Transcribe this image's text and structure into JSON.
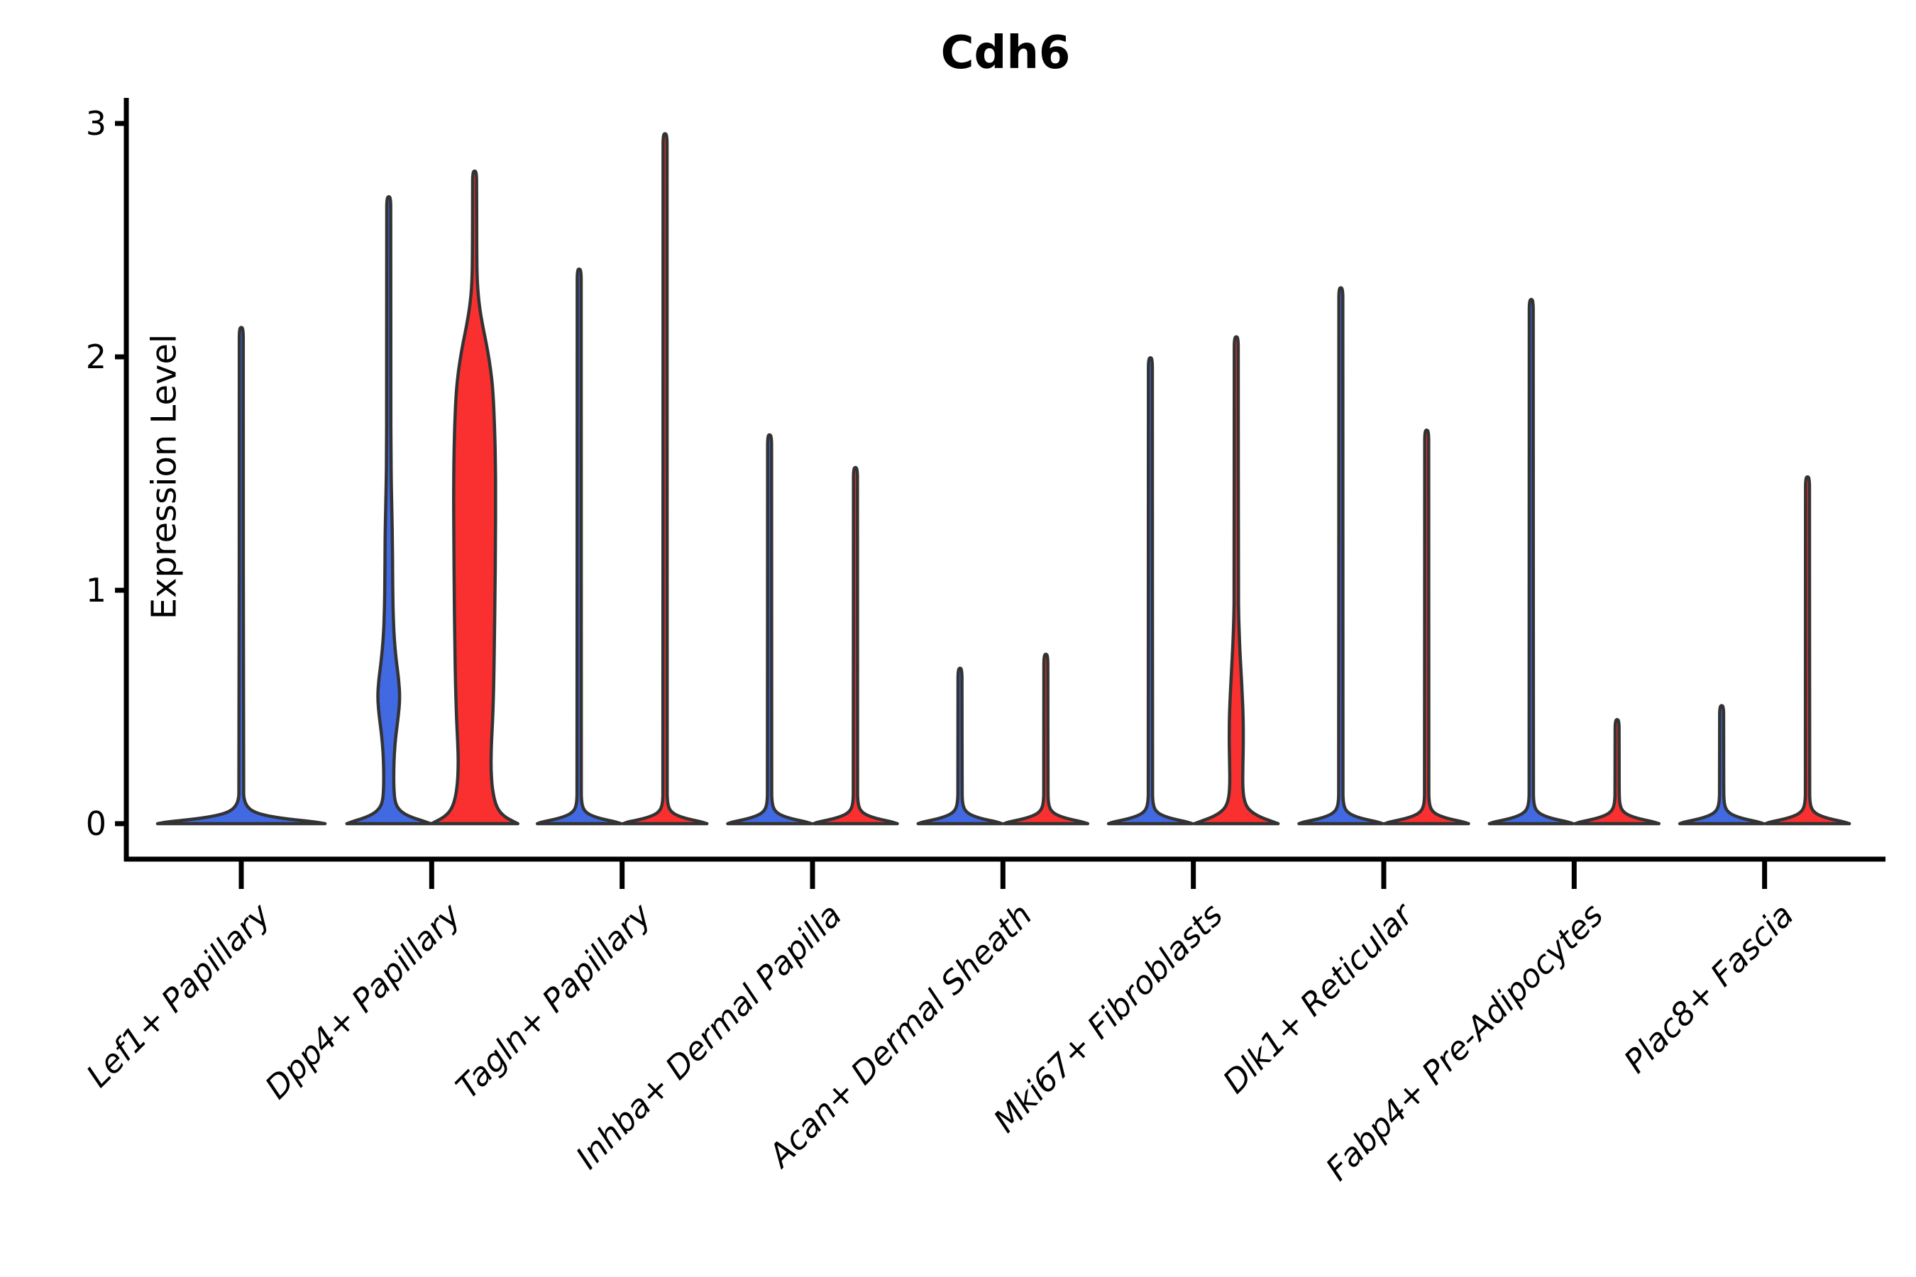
{
  "title": "Cdh6",
  "chart_data": {
    "type": "violin",
    "title": "Cdh6",
    "xlabel": "",
    "ylabel": "Expression Level",
    "ylim": [
      -0.15,
      3.11
    ],
    "yticks": [
      0,
      1,
      2,
      3
    ],
    "ytick_labels": [
      "0",
      "1",
      "2",
      "3"
    ],
    "grid": false,
    "legend": false,
    "background_color": "#ffffff",
    "axis_color": "#000000",
    "violin_outline_color": "#333333",
    "group_colors": {
      "left": "#4169E1",
      "right": "#FA3030"
    },
    "categories": [
      "Lef1+ Papillary",
      "Dpp4+ Papillary",
      "Tagln+ Papillary",
      "Inhba+ Dermal Papilla",
      "Acan+ Dermal Sheath",
      "Mki67+ Fibroblasts",
      "Dlk1+ Reticular",
      "Fabp4+ Pre-Adipocytes",
      "Plac8+ Fascia"
    ],
    "violins": [
      {
        "category": "Lef1+ Papillary",
        "category_index": 0,
        "side": "full",
        "fill": "#4169E1",
        "max_expression": 2.12,
        "profile": [
          [
            0,
            118
          ],
          [
            0.008,
            104
          ],
          [
            0.02,
            64
          ],
          [
            0.035,
            34
          ],
          [
            0.05,
            18
          ],
          [
            0.07,
            9
          ],
          [
            0.1,
            4
          ],
          [
            0.15,
            2.9
          ],
          [
            2.05,
            2.9
          ],
          [
            2.12,
            2.7
          ]
        ]
      },
      {
        "category": "Dpp4+ Papillary",
        "category_index": 1,
        "side": "left",
        "fill": "#4169E1",
        "max_expression": 2.68,
        "profile": [
          [
            0,
            59
          ],
          [
            0.01,
            50
          ],
          [
            0.025,
            34
          ],
          [
            0.045,
            20
          ],
          [
            0.07,
            12
          ],
          [
            0.1,
            8.5
          ],
          [
            0.15,
            7.2
          ],
          [
            0.22,
            7
          ],
          [
            0.3,
            7.8
          ],
          [
            0.38,
            10
          ],
          [
            0.46,
            13.5
          ],
          [
            0.54,
            15.8
          ],
          [
            0.62,
            14
          ],
          [
            0.7,
            10.5
          ],
          [
            0.8,
            7.5
          ],
          [
            0.92,
            6
          ],
          [
            1.05,
            5.5
          ],
          [
            1.2,
            5.2
          ],
          [
            1.32,
            4.6
          ],
          [
            1.45,
            3.6
          ],
          [
            1.6,
            3.1
          ],
          [
            1.8,
            2.9
          ],
          [
            2.61,
            2.9
          ],
          [
            2.68,
            2.7
          ]
        ]
      },
      {
        "category": "Dpp4+ Papillary",
        "category_index": 1,
        "side": "right",
        "fill": "#FA3030",
        "max_expression": 2.79,
        "profile": [
          [
            0,
            61
          ],
          [
            0.01,
            54
          ],
          [
            0.03,
            42
          ],
          [
            0.06,
            33
          ],
          [
            0.1,
            28
          ],
          [
            0.16,
            24.5
          ],
          [
            0.24,
            23
          ],
          [
            0.33,
            23.5
          ],
          [
            0.45,
            25.5
          ],
          [
            0.6,
            27
          ],
          [
            0.8,
            28
          ],
          [
            1.0,
            28.8
          ],
          [
            1.2,
            29.3
          ],
          [
            1.4,
            29.6
          ],
          [
            1.55,
            29.3
          ],
          [
            1.7,
            28.2
          ],
          [
            1.85,
            26
          ],
          [
            1.95,
            22.5
          ],
          [
            2.05,
            17
          ],
          [
            2.13,
            11.5
          ],
          [
            2.22,
            6.5
          ],
          [
            2.32,
            3.6
          ],
          [
            2.45,
            3.0
          ],
          [
            2.72,
            2.9
          ],
          [
            2.79,
            2.7
          ]
        ]
      },
      {
        "category": "Tagln+ Papillary",
        "category_index": 2,
        "side": "left",
        "fill": "#4169E1",
        "max_expression": 2.37,
        "profile": [
          [
            0,
            59
          ],
          [
            0.008,
            52
          ],
          [
            0.02,
            32
          ],
          [
            0.035,
            17
          ],
          [
            0.05,
            9
          ],
          [
            0.07,
            5
          ],
          [
            0.1,
            3.2
          ],
          [
            0.15,
            2.9
          ],
          [
            2.3,
            2.9
          ],
          [
            2.37,
            2.7
          ]
        ]
      },
      {
        "category": "Tagln+ Papillary",
        "category_index": 2,
        "side": "right",
        "fill": "#FA3030",
        "max_expression": 2.95,
        "profile": [
          [
            0,
            59
          ],
          [
            0.008,
            52
          ],
          [
            0.02,
            32
          ],
          [
            0.035,
            17
          ],
          [
            0.05,
            9
          ],
          [
            0.07,
            5
          ],
          [
            0.1,
            3.2
          ],
          [
            0.15,
            2.9
          ],
          [
            2.88,
            2.9
          ],
          [
            2.95,
            2.7
          ]
        ]
      },
      {
        "category": "Inhba+ Dermal Papilla",
        "category_index": 3,
        "side": "left",
        "fill": "#4169E1",
        "max_expression": 1.66,
        "profile": [
          [
            0,
            59
          ],
          [
            0.008,
            52
          ],
          [
            0.02,
            32
          ],
          [
            0.035,
            17
          ],
          [
            0.05,
            9
          ],
          [
            0.07,
            5
          ],
          [
            0.1,
            3.2
          ],
          [
            0.15,
            2.9
          ],
          [
            1.59,
            2.9
          ],
          [
            1.66,
            2.7
          ]
        ]
      },
      {
        "category": "Inhba+ Dermal Papilla",
        "category_index": 3,
        "side": "right",
        "fill": "#FA3030",
        "max_expression": 1.52,
        "profile": [
          [
            0,
            59
          ],
          [
            0.008,
            52
          ],
          [
            0.02,
            32
          ],
          [
            0.035,
            17
          ],
          [
            0.05,
            9
          ],
          [
            0.07,
            5
          ],
          [
            0.1,
            3.2
          ],
          [
            0.15,
            2.9
          ],
          [
            1.45,
            2.9
          ],
          [
            1.52,
            2.7
          ]
        ]
      },
      {
        "category": "Acan+ Dermal Sheath",
        "category_index": 4,
        "side": "left",
        "fill": "#4169E1",
        "max_expression": 0.66,
        "profile": [
          [
            0,
            59
          ],
          [
            0.008,
            52
          ],
          [
            0.02,
            32
          ],
          [
            0.035,
            17
          ],
          [
            0.05,
            9
          ],
          [
            0.07,
            5
          ],
          [
            0.1,
            3.2
          ],
          [
            0.15,
            2.9
          ],
          [
            0.59,
            2.9
          ],
          [
            0.66,
            2.7
          ]
        ]
      },
      {
        "category": "Acan+ Dermal Sheath",
        "category_index": 4,
        "side": "right",
        "fill": "#FA3030",
        "max_expression": 0.72,
        "profile": [
          [
            0,
            59
          ],
          [
            0.008,
            52
          ],
          [
            0.02,
            32
          ],
          [
            0.035,
            17
          ],
          [
            0.05,
            9
          ],
          [
            0.07,
            5
          ],
          [
            0.1,
            3.2
          ],
          [
            0.15,
            2.9
          ],
          [
            0.65,
            2.9
          ],
          [
            0.72,
            2.7
          ]
        ]
      },
      {
        "category": "Mki67+ Fibroblasts",
        "category_index": 5,
        "side": "left",
        "fill": "#4169E1",
        "max_expression": 1.99,
        "profile": [
          [
            0,
            59
          ],
          [
            0.008,
            52
          ],
          [
            0.02,
            32
          ],
          [
            0.035,
            17
          ],
          [
            0.05,
            9
          ],
          [
            0.07,
            5
          ],
          [
            0.1,
            3.2
          ],
          [
            0.15,
            2.9
          ],
          [
            1.92,
            2.9
          ],
          [
            1.99,
            2.7
          ]
        ]
      },
      {
        "category": "Mki67+ Fibroblasts",
        "category_index": 5,
        "side": "right",
        "fill": "#FA3030",
        "max_expression": 2.08,
        "profile": [
          [
            0,
            59
          ],
          [
            0.01,
            50
          ],
          [
            0.03,
            32
          ],
          [
            0.06,
            17
          ],
          [
            0.1,
            11
          ],
          [
            0.16,
            9
          ],
          [
            0.25,
            9.3
          ],
          [
            0.35,
            10
          ],
          [
            0.45,
            9.8
          ],
          [
            0.55,
            8.5
          ],
          [
            0.65,
            6.8
          ],
          [
            0.76,
            4.8
          ],
          [
            0.88,
            3.4
          ],
          [
            1.0,
            2.9
          ],
          [
            2.01,
            2.9
          ],
          [
            2.08,
            2.7
          ]
        ]
      },
      {
        "category": "Dlk1+ Reticular",
        "category_index": 6,
        "side": "left",
        "fill": "#4169E1",
        "max_expression": 2.29,
        "profile": [
          [
            0,
            59
          ],
          [
            0.008,
            52
          ],
          [
            0.02,
            32
          ],
          [
            0.035,
            17
          ],
          [
            0.05,
            9
          ],
          [
            0.07,
            5
          ],
          [
            0.1,
            3.2
          ],
          [
            0.15,
            2.9
          ],
          [
            2.22,
            2.9
          ],
          [
            2.29,
            2.7
          ]
        ]
      },
      {
        "category": "Dlk1+ Reticular",
        "category_index": 6,
        "side": "right",
        "fill": "#FA3030",
        "max_expression": 1.68,
        "profile": [
          [
            0,
            59
          ],
          [
            0.008,
            52
          ],
          [
            0.02,
            32
          ],
          [
            0.035,
            17
          ],
          [
            0.05,
            9
          ],
          [
            0.07,
            5
          ],
          [
            0.1,
            3.2
          ],
          [
            0.15,
            2.9
          ],
          [
            1.61,
            2.9
          ],
          [
            1.68,
            2.7
          ]
        ]
      },
      {
        "category": "Fabp4+ Pre-Adipocytes",
        "category_index": 7,
        "side": "left",
        "fill": "#4169E1",
        "max_expression": 2.24,
        "profile": [
          [
            0,
            59
          ],
          [
            0.008,
            52
          ],
          [
            0.02,
            32
          ],
          [
            0.035,
            17
          ],
          [
            0.05,
            9
          ],
          [
            0.07,
            5
          ],
          [
            0.1,
            3.2
          ],
          [
            0.15,
            2.9
          ],
          [
            2.17,
            2.9
          ],
          [
            2.24,
            2.7
          ]
        ]
      },
      {
        "category": "Fabp4+ Pre-Adipocytes",
        "category_index": 7,
        "side": "right",
        "fill": "#FA3030",
        "max_expression": 0.44,
        "profile": [
          [
            0,
            59
          ],
          [
            0.008,
            52
          ],
          [
            0.02,
            32
          ],
          [
            0.035,
            17
          ],
          [
            0.05,
            9
          ],
          [
            0.07,
            5
          ],
          [
            0.1,
            3.2
          ],
          [
            0.15,
            2.9
          ],
          [
            0.38,
            2.9
          ],
          [
            0.44,
            2.7
          ]
        ]
      },
      {
        "category": "Plac8+ Fascia",
        "category_index": 8,
        "side": "left",
        "fill": "#4169E1",
        "max_expression": 0.5,
        "profile": [
          [
            0,
            59
          ],
          [
            0.008,
            52
          ],
          [
            0.02,
            32
          ],
          [
            0.035,
            17
          ],
          [
            0.05,
            9
          ],
          [
            0.07,
            5
          ],
          [
            0.1,
            3.2
          ],
          [
            0.15,
            2.9
          ],
          [
            0.44,
            2.9
          ],
          [
            0.5,
            2.7
          ]
        ]
      },
      {
        "category": "Plac8+ Fascia",
        "category_index": 8,
        "side": "right",
        "fill": "#FA3030",
        "max_expression": 1.48,
        "profile": [
          [
            0,
            59
          ],
          [
            0.008,
            52
          ],
          [
            0.02,
            32
          ],
          [
            0.035,
            17
          ],
          [
            0.05,
            9
          ],
          [
            0.07,
            5
          ],
          [
            0.1,
            3.2
          ],
          [
            0.15,
            2.9
          ],
          [
            1.41,
            2.9
          ],
          [
            1.48,
            2.7
          ]
        ]
      }
    ]
  }
}
